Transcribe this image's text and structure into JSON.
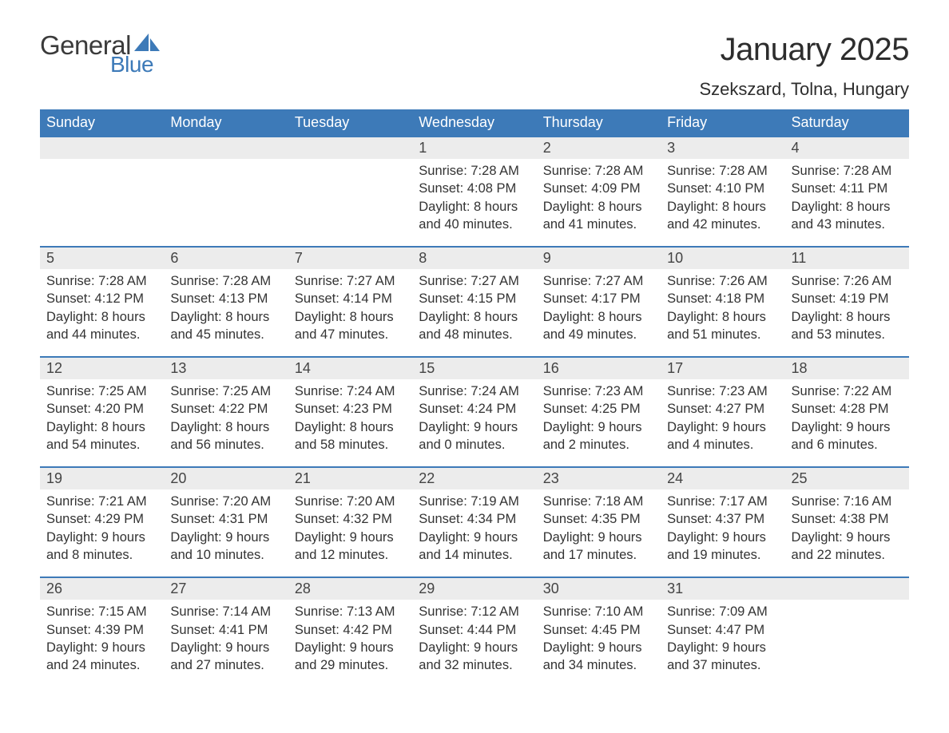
{
  "brand": {
    "general": "General",
    "blue": "Blue",
    "sail_color": "#3d7ab8"
  },
  "title": "January 2025",
  "location": "Szekszard, Tolna, Hungary",
  "colors": {
    "header_bg": "#3d7ab8",
    "header_text": "#ffffff",
    "daynum_bg": "#ececec",
    "row_divider": "#3d7ab8",
    "body_text": "#333333",
    "page_bg": "#ffffff"
  },
  "typography": {
    "title_fontsize": 40,
    "location_fontsize": 22,
    "header_fontsize": 18,
    "daynum_fontsize": 18,
    "cell_fontsize": 16.5,
    "font_family": "Arial"
  },
  "table": {
    "type": "calendar",
    "columns": [
      "Sunday",
      "Monday",
      "Tuesday",
      "Wednesday",
      "Thursday",
      "Friday",
      "Saturday"
    ],
    "weeks": [
      [
        null,
        null,
        null,
        {
          "day": "1",
          "sunrise": "Sunrise: 7:28 AM",
          "sunset": "Sunset: 4:08 PM",
          "daylight1": "Daylight: 8 hours",
          "daylight2": "and 40 minutes."
        },
        {
          "day": "2",
          "sunrise": "Sunrise: 7:28 AM",
          "sunset": "Sunset: 4:09 PM",
          "daylight1": "Daylight: 8 hours",
          "daylight2": "and 41 minutes."
        },
        {
          "day": "3",
          "sunrise": "Sunrise: 7:28 AM",
          "sunset": "Sunset: 4:10 PM",
          "daylight1": "Daylight: 8 hours",
          "daylight2": "and 42 minutes."
        },
        {
          "day": "4",
          "sunrise": "Sunrise: 7:28 AM",
          "sunset": "Sunset: 4:11 PM",
          "daylight1": "Daylight: 8 hours",
          "daylight2": "and 43 minutes."
        }
      ],
      [
        {
          "day": "5",
          "sunrise": "Sunrise: 7:28 AM",
          "sunset": "Sunset: 4:12 PM",
          "daylight1": "Daylight: 8 hours",
          "daylight2": "and 44 minutes."
        },
        {
          "day": "6",
          "sunrise": "Sunrise: 7:28 AM",
          "sunset": "Sunset: 4:13 PM",
          "daylight1": "Daylight: 8 hours",
          "daylight2": "and 45 minutes."
        },
        {
          "day": "7",
          "sunrise": "Sunrise: 7:27 AM",
          "sunset": "Sunset: 4:14 PM",
          "daylight1": "Daylight: 8 hours",
          "daylight2": "and 47 minutes."
        },
        {
          "day": "8",
          "sunrise": "Sunrise: 7:27 AM",
          "sunset": "Sunset: 4:15 PM",
          "daylight1": "Daylight: 8 hours",
          "daylight2": "and 48 minutes."
        },
        {
          "day": "9",
          "sunrise": "Sunrise: 7:27 AM",
          "sunset": "Sunset: 4:17 PM",
          "daylight1": "Daylight: 8 hours",
          "daylight2": "and 49 minutes."
        },
        {
          "day": "10",
          "sunrise": "Sunrise: 7:26 AM",
          "sunset": "Sunset: 4:18 PM",
          "daylight1": "Daylight: 8 hours",
          "daylight2": "and 51 minutes."
        },
        {
          "day": "11",
          "sunrise": "Sunrise: 7:26 AM",
          "sunset": "Sunset: 4:19 PM",
          "daylight1": "Daylight: 8 hours",
          "daylight2": "and 53 minutes."
        }
      ],
      [
        {
          "day": "12",
          "sunrise": "Sunrise: 7:25 AM",
          "sunset": "Sunset: 4:20 PM",
          "daylight1": "Daylight: 8 hours",
          "daylight2": "and 54 minutes."
        },
        {
          "day": "13",
          "sunrise": "Sunrise: 7:25 AM",
          "sunset": "Sunset: 4:22 PM",
          "daylight1": "Daylight: 8 hours",
          "daylight2": "and 56 minutes."
        },
        {
          "day": "14",
          "sunrise": "Sunrise: 7:24 AM",
          "sunset": "Sunset: 4:23 PM",
          "daylight1": "Daylight: 8 hours",
          "daylight2": "and 58 minutes."
        },
        {
          "day": "15",
          "sunrise": "Sunrise: 7:24 AM",
          "sunset": "Sunset: 4:24 PM",
          "daylight1": "Daylight: 9 hours",
          "daylight2": "and 0 minutes."
        },
        {
          "day": "16",
          "sunrise": "Sunrise: 7:23 AM",
          "sunset": "Sunset: 4:25 PM",
          "daylight1": "Daylight: 9 hours",
          "daylight2": "and 2 minutes."
        },
        {
          "day": "17",
          "sunrise": "Sunrise: 7:23 AM",
          "sunset": "Sunset: 4:27 PM",
          "daylight1": "Daylight: 9 hours",
          "daylight2": "and 4 minutes."
        },
        {
          "day": "18",
          "sunrise": "Sunrise: 7:22 AM",
          "sunset": "Sunset: 4:28 PM",
          "daylight1": "Daylight: 9 hours",
          "daylight2": "and 6 minutes."
        }
      ],
      [
        {
          "day": "19",
          "sunrise": "Sunrise: 7:21 AM",
          "sunset": "Sunset: 4:29 PM",
          "daylight1": "Daylight: 9 hours",
          "daylight2": "and 8 minutes."
        },
        {
          "day": "20",
          "sunrise": "Sunrise: 7:20 AM",
          "sunset": "Sunset: 4:31 PM",
          "daylight1": "Daylight: 9 hours",
          "daylight2": "and 10 minutes."
        },
        {
          "day": "21",
          "sunrise": "Sunrise: 7:20 AM",
          "sunset": "Sunset: 4:32 PM",
          "daylight1": "Daylight: 9 hours",
          "daylight2": "and 12 minutes."
        },
        {
          "day": "22",
          "sunrise": "Sunrise: 7:19 AM",
          "sunset": "Sunset: 4:34 PM",
          "daylight1": "Daylight: 9 hours",
          "daylight2": "and 14 minutes."
        },
        {
          "day": "23",
          "sunrise": "Sunrise: 7:18 AM",
          "sunset": "Sunset: 4:35 PM",
          "daylight1": "Daylight: 9 hours",
          "daylight2": "and 17 minutes."
        },
        {
          "day": "24",
          "sunrise": "Sunrise: 7:17 AM",
          "sunset": "Sunset: 4:37 PM",
          "daylight1": "Daylight: 9 hours",
          "daylight2": "and 19 minutes."
        },
        {
          "day": "25",
          "sunrise": "Sunrise: 7:16 AM",
          "sunset": "Sunset: 4:38 PM",
          "daylight1": "Daylight: 9 hours",
          "daylight2": "and 22 minutes."
        }
      ],
      [
        {
          "day": "26",
          "sunrise": "Sunrise: 7:15 AM",
          "sunset": "Sunset: 4:39 PM",
          "daylight1": "Daylight: 9 hours",
          "daylight2": "and 24 minutes."
        },
        {
          "day": "27",
          "sunrise": "Sunrise: 7:14 AM",
          "sunset": "Sunset: 4:41 PM",
          "daylight1": "Daylight: 9 hours",
          "daylight2": "and 27 minutes."
        },
        {
          "day": "28",
          "sunrise": "Sunrise: 7:13 AM",
          "sunset": "Sunset: 4:42 PM",
          "daylight1": "Daylight: 9 hours",
          "daylight2": "and 29 minutes."
        },
        {
          "day": "29",
          "sunrise": "Sunrise: 7:12 AM",
          "sunset": "Sunset: 4:44 PM",
          "daylight1": "Daylight: 9 hours",
          "daylight2": "and 32 minutes."
        },
        {
          "day": "30",
          "sunrise": "Sunrise: 7:10 AM",
          "sunset": "Sunset: 4:45 PM",
          "daylight1": "Daylight: 9 hours",
          "daylight2": "and 34 minutes."
        },
        {
          "day": "31",
          "sunrise": "Sunrise: 7:09 AM",
          "sunset": "Sunset: 4:47 PM",
          "daylight1": "Daylight: 9 hours",
          "daylight2": "and 37 minutes."
        },
        null
      ]
    ]
  }
}
